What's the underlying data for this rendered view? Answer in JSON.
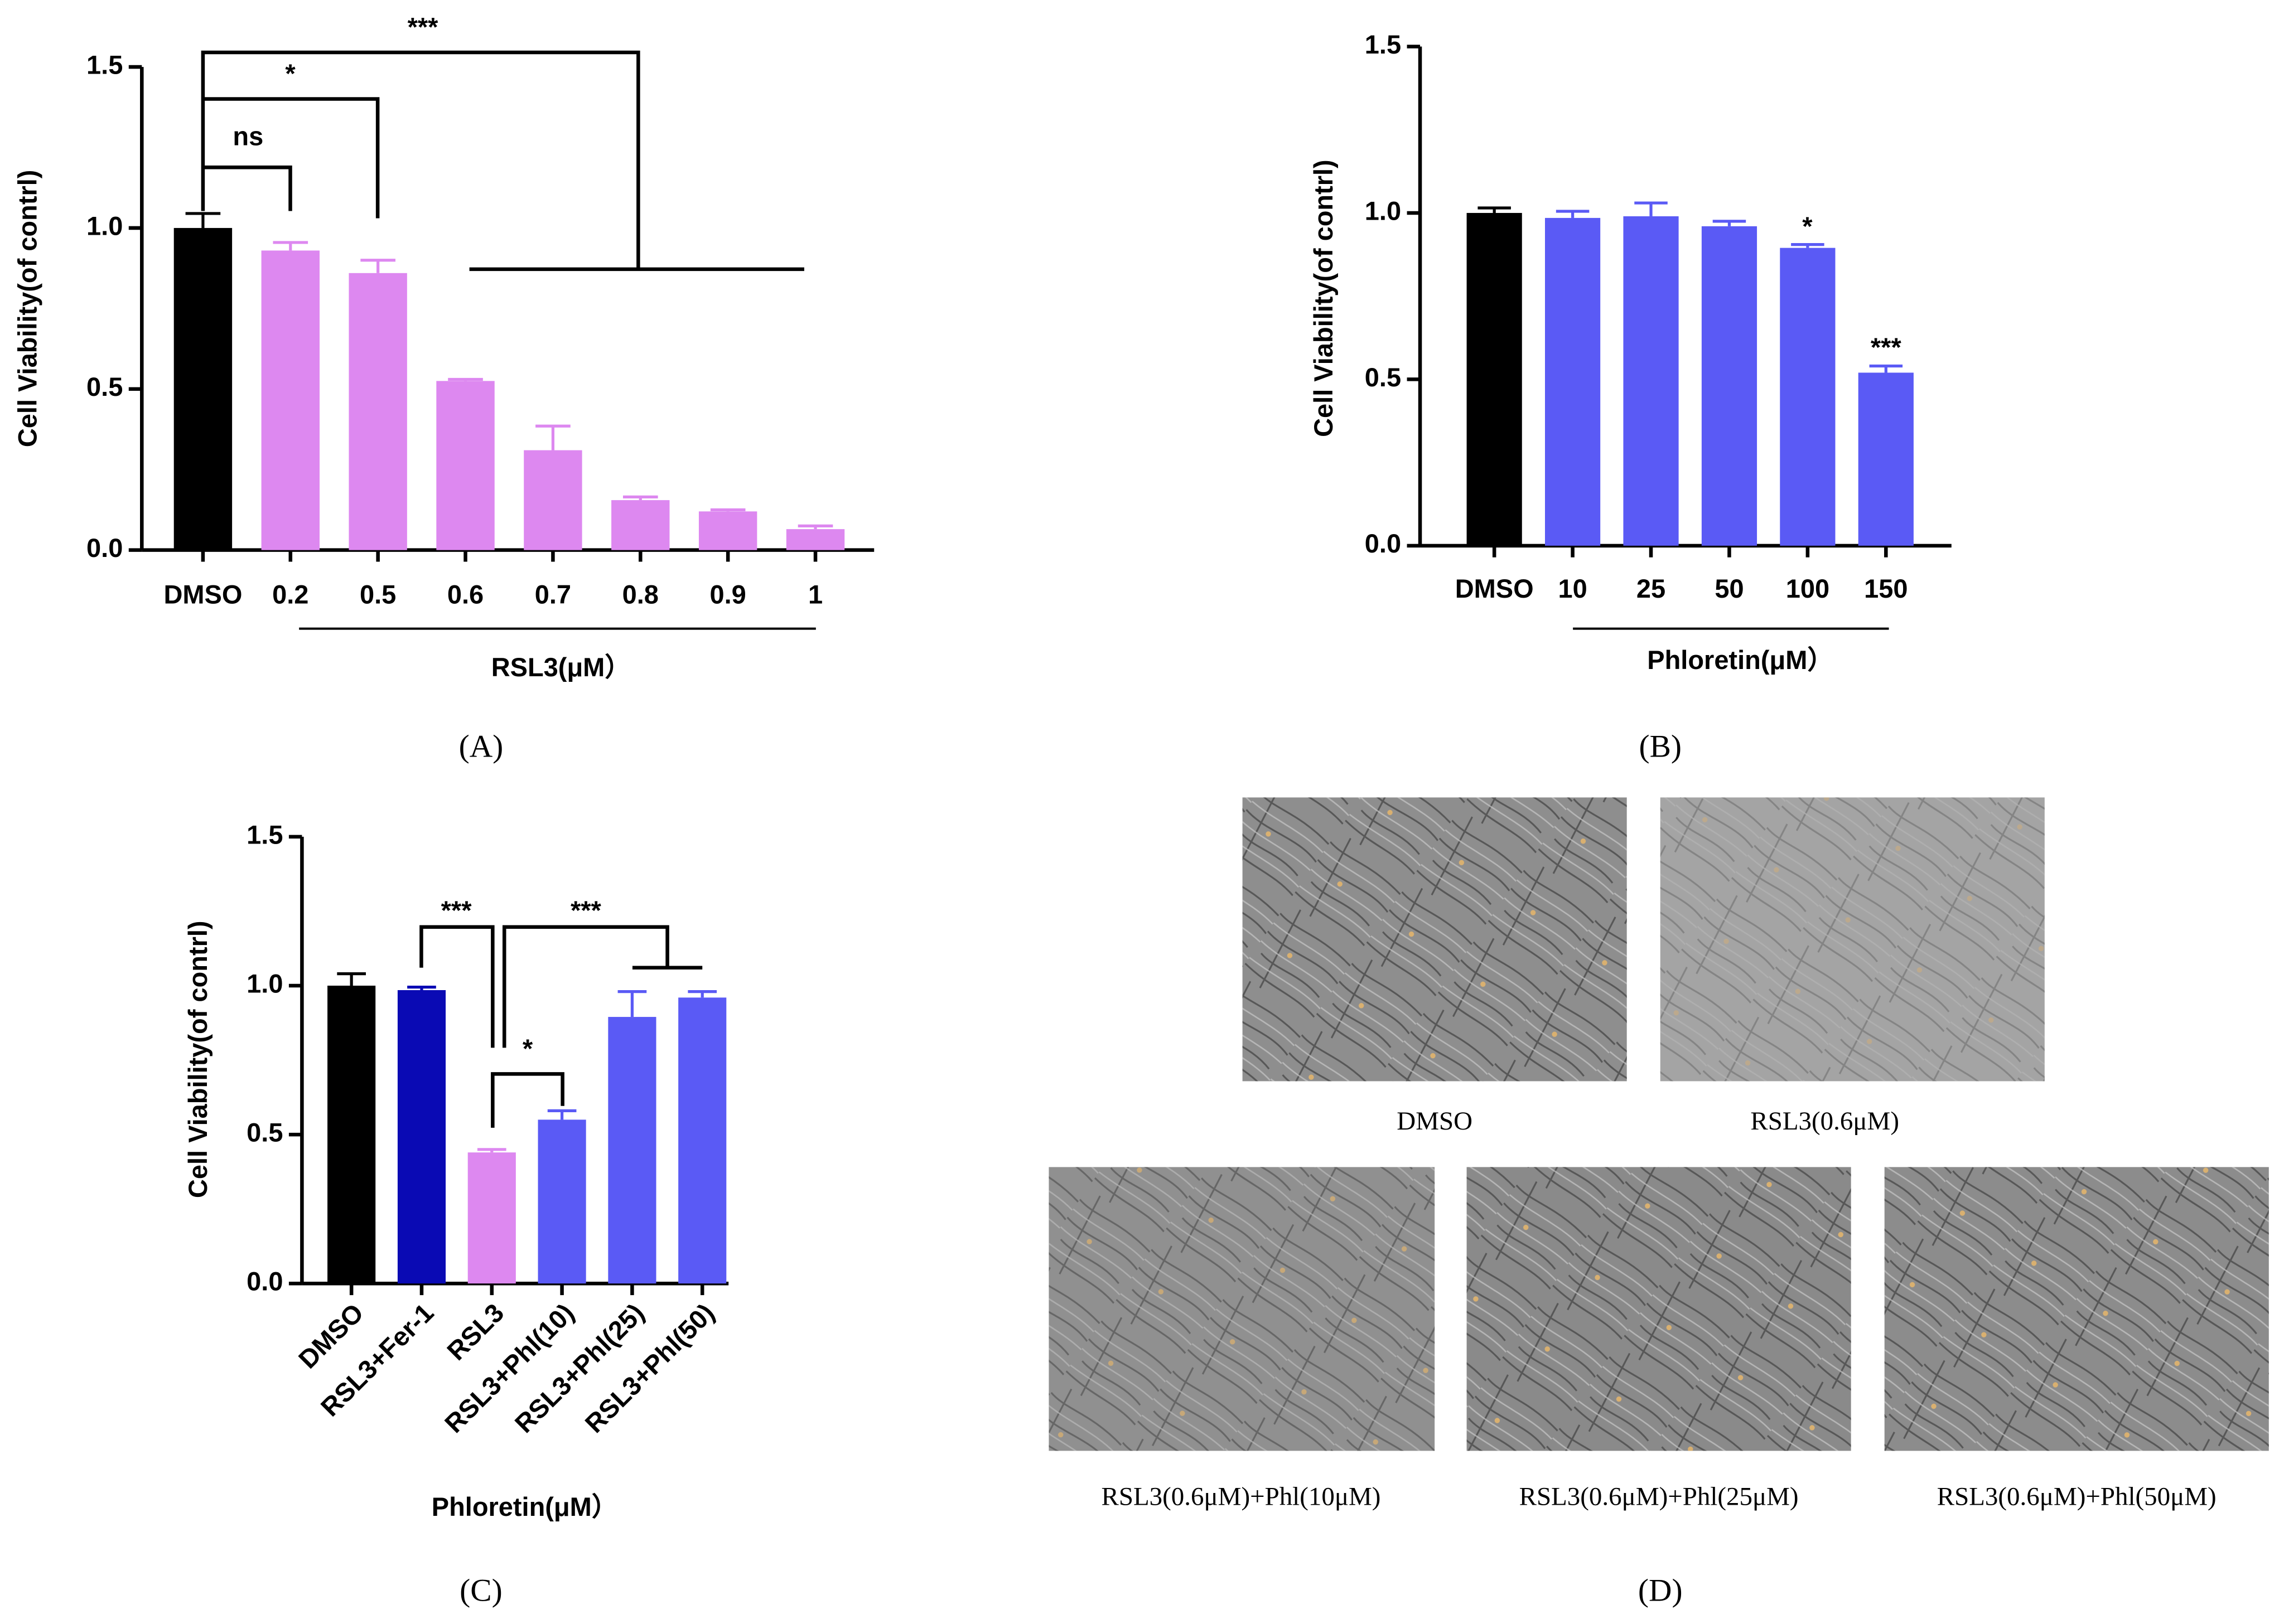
{
  "chart_data": [
    {
      "type": "bar",
      "panel_label": "(A)",
      "ylabel": "Cell Viability(of contrl)",
      "xlabel": "RSL3(μM）",
      "categories": [
        "DMSO",
        "0.2",
        "0.5",
        "0.6",
        "0.7",
        "0.8",
        "0.9",
        "1"
      ],
      "values": [
        1.0,
        0.93,
        0.86,
        0.525,
        0.31,
        0.155,
        0.12,
        0.065
      ],
      "errors": [
        0.045,
        0.025,
        0.04,
        0.005,
        0.075,
        0.01,
        0.005,
        0.01
      ],
      "colors": [
        "#000000",
        "#dd88f0",
        "#dd88f0",
        "#dd88f0",
        "#dd88f0",
        "#dd88f0",
        "#dd88f0",
        "#dd88f0"
      ],
      "ylim": [
        0,
        1.5
      ],
      "yticks": [
        {
          "value": 0,
          "label": "0.0"
        },
        0.5,
        {
          "value": 1,
          "label": "1.0"
        },
        1.5
      ],
      "annotations": [
        "***",
        "*",
        "ns"
      ]
    },
    {
      "type": "bar",
      "panel_label": "(B)",
      "ylabel": "Cell Viability(of contrl)",
      "xlabel": "Phloretin(μM）",
      "categories": [
        "DMSO",
        "10",
        "25",
        "50",
        "100",
        "150"
      ],
      "values": [
        1.0,
        0.985,
        0.99,
        0.96,
        0.895,
        0.52
      ],
      "errors": [
        0.015,
        0.02,
        0.04,
        0.015,
        0.01,
        0.02
      ],
      "colors": [
        "#000000",
        "#5a5af5",
        "#5a5af5",
        "#5a5af5",
        "#5a5af5",
        "#5a5af5"
      ],
      "ylim": [
        0,
        1.5
      ],
      "yticks": [
        {
          "value": 0,
          "label": "0.0"
        },
        0.5,
        {
          "value": 1,
          "label": "1.0"
        },
        1.5
      ],
      "annotations": [
        "*",
        "***"
      ]
    },
    {
      "type": "bar",
      "panel_label": "(C)",
      "ylabel": "Cell Viability(of contrl)",
      "xlabel": "Phloretin(μM）",
      "categories": [
        "DMSO",
        "RSL3+Fer-1",
        "RSL3",
        "RSL3+Phl(10)",
        "RSL3+Phl(25)",
        "RSL3+Phl(50)"
      ],
      "values": [
        1.0,
        0.985,
        0.44,
        0.55,
        0.895,
        0.96
      ],
      "errors": [
        0.04,
        0.01,
        0.01,
        0.03,
        0.085,
        0.02
      ],
      "colors": [
        "#000000",
        "#0a0ab4",
        "#dd88f0",
        "#5a5af5",
        "#5a5af5",
        "#5a5af5"
      ],
      "ylim": [
        0,
        1.5
      ],
      "yticks": [
        {
          "value": 0,
          "label": "0.0"
        },
        0.5,
        {
          "value": 1,
          "label": "1.0"
        },
        1.5
      ],
      "annotations": [
        "***",
        "***",
        "*"
      ]
    }
  ],
  "panel_d": {
    "label": "(D)",
    "captions": [
      "DMSO",
      "RSL3(0.6μM)",
      "RSL3(0.6μM)+Phl(10μM)",
      "RSL3(0.6μM)+Phl(25μM)",
      "RSL3(0.6μM)+Phl(50μM)"
    ]
  }
}
